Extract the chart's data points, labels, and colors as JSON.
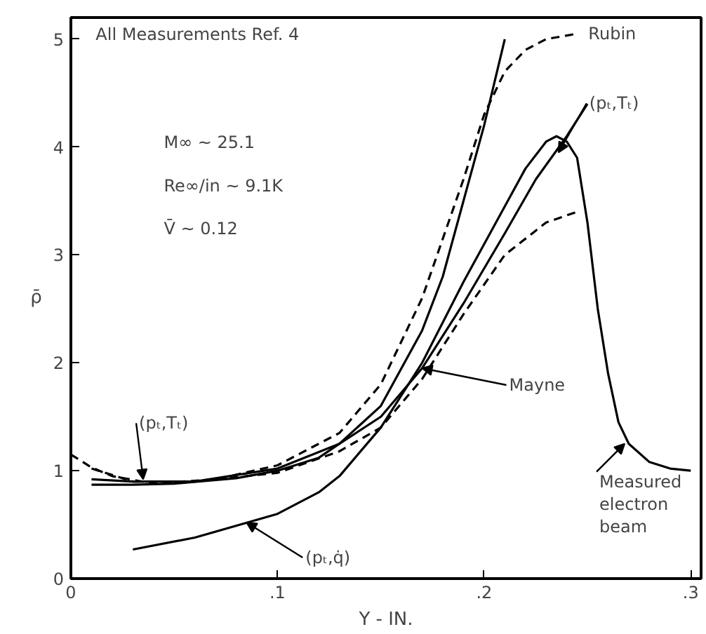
{
  "chart_data": {
    "type": "line",
    "xlabel": "Y - IN.",
    "ylabel": "ρ̄",
    "xlim": [
      0,
      0.305
    ],
    "ylim": [
      0,
      5.2
    ],
    "xticks": [
      {
        "value": 0,
        "label": "0"
      },
      {
        "value": 0.1,
        "label": ".1"
      },
      {
        "value": 0.2,
        "label": ".2"
      },
      {
        "value": 0.3,
        "label": ".3"
      }
    ],
    "yticks": [
      0,
      1,
      2,
      3,
      4,
      5
    ],
    "grid": false,
    "marker": "none",
    "series": [
      {
        "color": "#000000",
        "line_style": "solid",
        "x": [
          0.01,
          0.03,
          0.05,
          0.08,
          0.1,
          0.12,
          0.13,
          0.15,
          0.17,
          0.18,
          0.19,
          0.2,
          0.21
        ],
        "values": [
          0.87,
          0.87,
          0.88,
          0.93,
          1.0,
          1.12,
          1.25,
          1.6,
          2.3,
          2.8,
          3.5,
          4.2,
          5.0
        ]
      },
      {
        "color": "#000000",
        "line_style": "dashed",
        "x": [
          0.0,
          0.01,
          0.02,
          0.04,
          0.07,
          0.1,
          0.13,
          0.15,
          0.17,
          0.19,
          0.2,
          0.21,
          0.22,
          0.23,
          0.245
        ],
        "values": [
          1.15,
          1.03,
          0.95,
          0.88,
          0.92,
          1.05,
          1.35,
          1.8,
          2.6,
          3.7,
          4.3,
          4.7,
          4.9,
          5.0,
          5.05
        ]
      },
      {
        "color": "#000000",
        "line_style": "dashed",
        "x": [
          0.01,
          0.03,
          0.06,
          0.1,
          0.13,
          0.15,
          0.17,
          0.19,
          0.21,
          0.23,
          0.245
        ],
        "values": [
          1.02,
          0.9,
          0.9,
          0.98,
          1.18,
          1.4,
          1.85,
          2.45,
          3.0,
          3.3,
          3.4
        ]
      },
      {
        "color": "#000000",
        "line_style": "solid",
        "x": [
          0.01,
          0.03,
          0.06,
          0.1,
          0.13,
          0.15,
          0.17,
          0.19,
          0.21,
          0.225,
          0.24,
          0.25
        ],
        "values": [
          0.92,
          0.9,
          0.9,
          1.02,
          1.25,
          1.5,
          1.95,
          2.55,
          3.2,
          3.7,
          4.1,
          4.4
        ]
      },
      {
        "color": "#000000",
        "line_style": "solid",
        "x": [
          0.03,
          0.06,
          0.1,
          0.12,
          0.13,
          0.15,
          0.17,
          0.19,
          0.21,
          0.22,
          0.23,
          0.235,
          0.24,
          0.245,
          0.25,
          0.255,
          0.26,
          0.265,
          0.27,
          0.28,
          0.29,
          0.3
        ],
        "values": [
          0.27,
          0.38,
          0.6,
          0.8,
          0.95,
          1.4,
          2.0,
          2.75,
          3.45,
          3.8,
          4.05,
          4.1,
          4.05,
          3.9,
          3.3,
          2.5,
          1.9,
          1.45,
          1.25,
          1.08,
          1.02,
          1.0
        ]
      }
    ],
    "annotations": [
      "All Measurements Ref. 4",
      "M∞ ~ 25.1",
      "Re∞/in ~ 9.1K",
      "V̄ ~ 0.12",
      {
        "text": "(pₜ,Tₜ)",
        "x": 0.035,
        "y": 0.92
      },
      {
        "text": "(pₜ,q̇)",
        "x": 0.085,
        "y": 0.52
      },
      {
        "text": "Mayne",
        "x": 0.17,
        "y": 1.95
      },
      {
        "text": "(pₜ,Tₜ)",
        "x": 0.236,
        "y": 3.95
      },
      {
        "text": "Rubin",
        "x": 0.245,
        "y": 5.05
      },
      {
        "text": "Measured\nelectron\nbeam",
        "x": 0.268,
        "y": 1.25
      }
    ]
  }
}
